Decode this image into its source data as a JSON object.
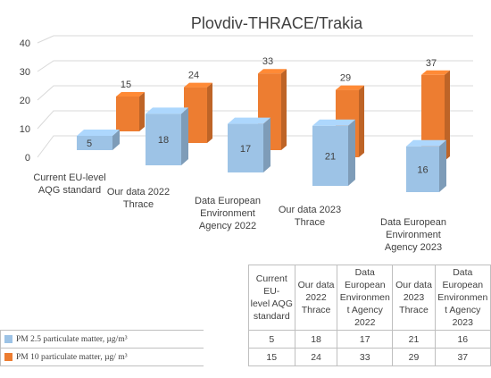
{
  "chart_data": {
    "type": "bar",
    "title": "Plovdiv-THRACE/Trakia",
    "categories": [
      [
        "Current EU-level",
        "AQG standard"
      ],
      [
        "Our data 2022",
        "Thrace"
      ],
      [
        "Data European",
        "Environment",
        "Agency 2022"
      ],
      [
        "Our data 2023",
        "Thrace"
      ],
      [
        "Data European",
        "Environment",
        "Agency 2023"
      ]
    ],
    "series": [
      {
        "name": "PM 2.5 particulate matter, µg/m³",
        "values": [
          5,
          18,
          17,
          21,
          16
        ],
        "color": "#9dc3e6"
      },
      {
        "name": "PM 10 particulate matter, µg/ m³",
        "values": [
          15,
          24,
          33,
          29,
          37
        ],
        "color": "#ed7d31"
      }
    ],
    "yticks": [
      0,
      10,
      20,
      30,
      40
    ],
    "ylim": [
      0,
      40
    ],
    "style": "3d-clustered-column",
    "data_table": {
      "headers": [
        [
          "Current EU-",
          "level AQG",
          "standard"
        ],
        [
          "Our data",
          "2022",
          "Thrace"
        ],
        [
          "Data",
          "European",
          "Environmen",
          "t Agency",
          "2022"
        ],
        [
          "Our data",
          "2023",
          "Thrace"
        ],
        [
          "Data",
          "European",
          "Environmen",
          "t Agency",
          "2023"
        ]
      ]
    }
  }
}
